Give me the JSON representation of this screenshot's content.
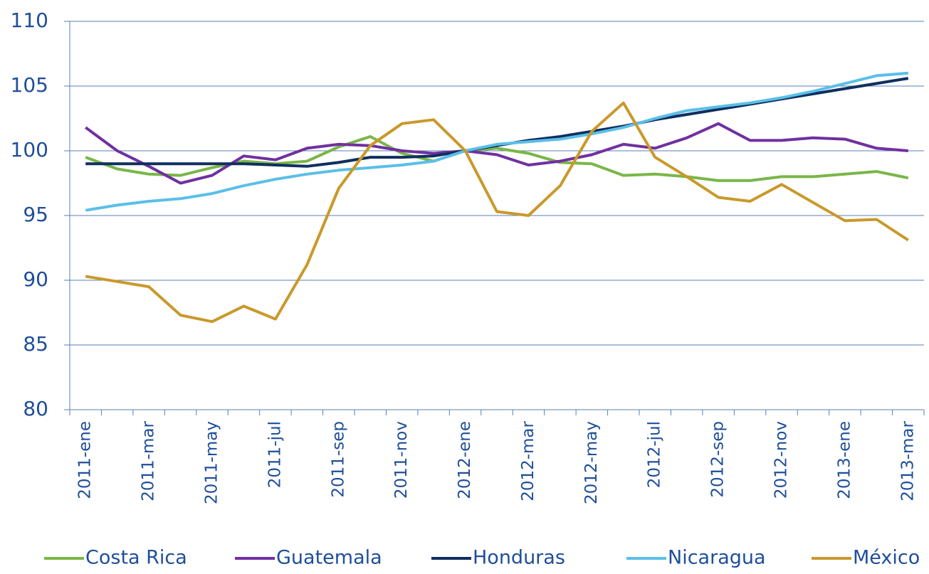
{
  "chart_data": {
    "type": "line",
    "categories": [
      "2011-ene",
      null,
      "2011-mar",
      null,
      "2011-may",
      null,
      "2011-jul",
      null,
      "2011-sep",
      null,
      "2011-nov",
      null,
      "2012-ene",
      null,
      "2012-mar",
      null,
      "2012-may",
      null,
      "2012-jul",
      null,
      "2012-sep",
      null,
      "2012-nov",
      null,
      "2013-ene",
      null,
      "2013-mar"
    ],
    "series": [
      {
        "name": "Costa Rica",
        "color": "#7ab648",
        "values": [
          99.5,
          98.6,
          98.2,
          98.1,
          98.7,
          99.2,
          99.0,
          99.2,
          100.3,
          101.1,
          99.8,
          99.2,
          100.0,
          100.2,
          99.8,
          99.1,
          99.0,
          98.1,
          98.2,
          98.0,
          97.7,
          97.7,
          98.0,
          98.0,
          98.2,
          98.4,
          97.9
        ]
      },
      {
        "name": "Guatemala",
        "color": "#7030a0",
        "values": [
          101.8,
          100.0,
          98.8,
          97.5,
          98.1,
          99.6,
          99.3,
          100.2,
          100.5,
          100.4,
          100.0,
          99.8,
          100.0,
          99.7,
          98.9,
          99.2,
          99.7,
          100.5,
          100.2,
          101.0,
          102.1,
          100.8,
          100.8,
          101.0,
          100.9,
          100.2,
          100.0
        ]
      },
      {
        "name": "Honduras",
        "color": "#0f2f5f",
        "values": [
          99.0,
          99.0,
          99.0,
          99.0,
          99.0,
          99.0,
          98.9,
          98.8,
          99.1,
          99.5,
          99.5,
          99.6,
          100.0,
          100.4,
          100.8,
          101.1,
          101.5,
          101.9,
          102.4,
          102.8,
          103.2,
          103.6,
          104.0,
          104.4,
          104.8,
          105.2,
          105.6
        ]
      },
      {
        "name": "Nicaragua",
        "color": "#5bbfe8",
        "values": [
          95.4,
          95.8,
          96.1,
          96.3,
          96.7,
          97.3,
          97.8,
          98.2,
          98.5,
          98.7,
          98.9,
          99.2,
          100.0,
          100.5,
          100.7,
          100.9,
          101.3,
          101.8,
          102.5,
          103.1,
          103.4,
          103.7,
          104.1,
          104.6,
          105.2,
          105.8,
          106.0
        ]
      },
      {
        "name": "México",
        "color": "#c9992a",
        "values": [
          90.3,
          89.9,
          89.5,
          87.3,
          86.8,
          88.0,
          87.0,
          91.2,
          97.1,
          100.4,
          102.1,
          102.4,
          100.0,
          95.3,
          95.0,
          97.3,
          101.5,
          103.7,
          99.5,
          98.0,
          96.4,
          96.1,
          97.4,
          96.0,
          94.6,
          94.7,
          93.1
        ]
      }
    ],
    "ylim": [
      80,
      110
    ],
    "yticks": [
      80,
      85,
      90,
      95,
      100,
      105,
      110
    ],
    "grid": true,
    "legend": "bottom"
  }
}
